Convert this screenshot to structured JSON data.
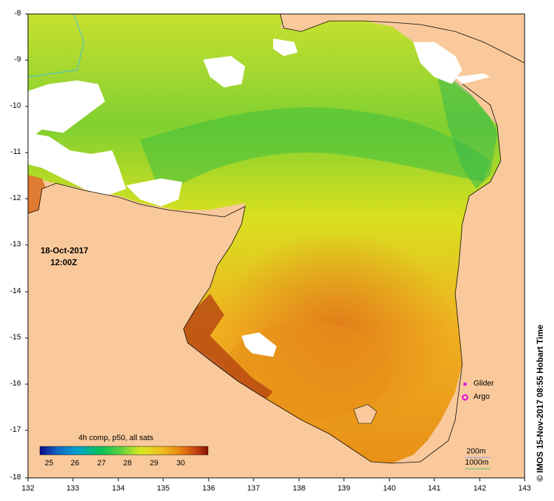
{
  "date_label": "18-Oct-2017",
  "time_label": "12:00Z",
  "credit": "IMOS 15-Nov-2017 08:55 Hobart Time",
  "copyright_symbol": "©",
  "colorbar": {
    "title": "4h comp, p50, all sats",
    "ticks": [
      "25",
      "26",
      "27",
      "28",
      "29",
      "30"
    ],
    "range": [
      24.5,
      31
    ],
    "colors": [
      "#0a0a8c",
      "#1565c0",
      "#00a0d0",
      "#00c060",
      "#60d040",
      "#d8e820",
      "#f0c020",
      "#e88010",
      "#c84010",
      "#801000"
    ]
  },
  "legend": {
    "glider": "Glider",
    "argo": "Argo",
    "glider_color": "#d020d0",
    "argo_color": "#e000e0"
  },
  "scale": {
    "depth1": "200m",
    "depth2": "1000m"
  },
  "axes": {
    "lat_ticks": [
      "-8",
      "-9",
      "-10",
      "-11",
      "-12",
      "-13",
      "-14",
      "-15",
      "-16",
      "-17",
      "-18"
    ],
    "lon_ticks": [
      "132",
      "133",
      "134",
      "135",
      "136",
      "137",
      "138",
      "139",
      "140",
      "141",
      "142",
      "143"
    ]
  },
  "colors": {
    "land": "#f9c99b",
    "cloud": "#ffffff",
    "warm": "#e8a020",
    "hot": "#c05010",
    "mid": "#d8e020",
    "cool": "#70d030"
  }
}
